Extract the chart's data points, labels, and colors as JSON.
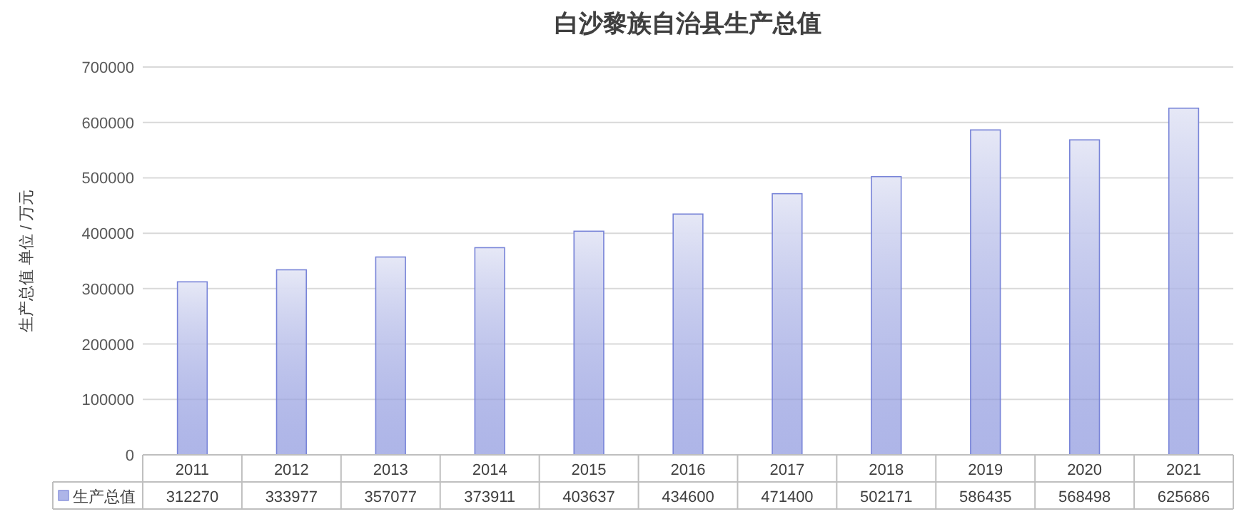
{
  "chart_data": {
    "type": "bar",
    "title": "白沙黎族自治县生产总值",
    "ylabel": "生产总值 单位 / 万元",
    "categories": [
      "2011",
      "2012",
      "2013",
      "2014",
      "2015",
      "2016",
      "2017",
      "2018",
      "2019",
      "2020",
      "2021"
    ],
    "series": [
      {
        "name": "生产总值",
        "color": "#7884d8",
        "values": [
          312270,
          333977,
          357077,
          373911,
          403637,
          434600,
          471400,
          502171,
          586435,
          568498,
          625686
        ]
      }
    ],
    "ylim": [
      0,
      700000
    ],
    "yticks": [
      0,
      100000,
      200000,
      300000,
      400000,
      500000,
      600000,
      700000
    ],
    "grid": "y",
    "legend": "bottom",
    "data_labels": true
  }
}
